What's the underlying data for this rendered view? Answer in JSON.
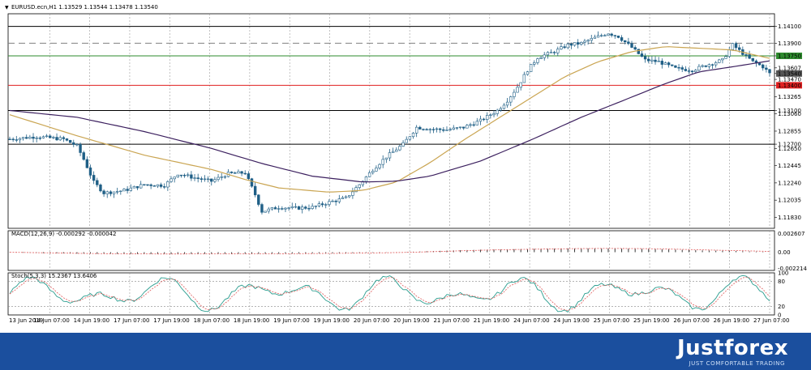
{
  "header": {
    "symbol_info": "EURUSD.ecn,H1  1.13529 1.13544 1.13478 1.13540",
    "macd_info": "MACD(12,26,9) -0.000292 -0.000042",
    "stoch_info": "Stoch(5,3,3) 15.2367 13.6406"
  },
  "brand": {
    "name": "Justforex",
    "tagline": "JUST COMFORTABLE TRADING"
  },
  "colors": {
    "candle": "#1f5f86",
    "ma_fast": "#caa552",
    "ma_slow": "#3b1f5e",
    "line_black": "#000000",
    "line_green": "#2e8b2e",
    "line_red": "#e02020",
    "line_dashed": "#808080",
    "macd_hist": "#333333",
    "macd_signal": "#e05a5a",
    "stoch_main": "#2a9d8f",
    "stoch_signal": "#e05a5a",
    "footer_bg": "#1b4f9e"
  },
  "chart_data": {
    "type": "candlestick",
    "symbol": "EURUSD.ecn",
    "timeframe": "H1",
    "price_axis": {
      "range": [
        1.117,
        1.1425
      ],
      "ticks": [
        "1.14100",
        "1.13900",
        "1.13750",
        "1.13607",
        "1.13540",
        "1.13470",
        "1.13400",
        "1.13265",
        "1.13100",
        "1.13060",
        "1.12855",
        "1.12700",
        "1.12650",
        "1.12445",
        "1.12240",
        "1.12035",
        "1.11830"
      ],
      "highlight_labels": [
        {
          "value": "1.13750",
          "color": "#2e8b2e"
        },
        {
          "value": "1.13540",
          "color": "#555555"
        },
        {
          "value": "1.13400",
          "color": "#e02020"
        }
      ]
    },
    "horizontal_levels": [
      {
        "value": 1.141,
        "style": "solid",
        "color": "#000000"
      },
      {
        "value": 1.139,
        "style": "dashed",
        "color": "#808080"
      },
      {
        "value": 1.1375,
        "style": "solid",
        "color": "#2e8b2e"
      },
      {
        "value": 1.134,
        "style": "solid",
        "color": "#e02020"
      },
      {
        "value": 1.131,
        "style": "solid",
        "color": "#000000"
      },
      {
        "value": 1.127,
        "style": "solid",
        "color": "#000000"
      }
    ],
    "time_axis": [
      "13 Jun 2019",
      "14 Jun 07:00",
      "14 Jun 19:00",
      "17 Jun 07:00",
      "17 Jun 19:00",
      "18 Jun 07:00",
      "18 Jun 19:00",
      "19 Jun 07:00",
      "19 Jun 19:00",
      "20 Jun 07:00",
      "20 Jun 19:00",
      "21 Jun 07:00",
      "21 Jun 19:00",
      "24 Jun 07:00",
      "24 Jun 19:00",
      "25 Jun 07:00",
      "25 Jun 19:00",
      "26 Jun 07:00",
      "26 Jun 19:00",
      "27 Jun 07:00"
    ],
    "close_path": [
      [
        0,
        1.1276
      ],
      [
        8,
        1.1279
      ],
      [
        16,
        1.1276
      ],
      [
        20,
        1.1268
      ],
      [
        22,
        1.1252
      ],
      [
        25,
        1.1225
      ],
      [
        28,
        1.1212
      ],
      [
        34,
        1.1215
      ],
      [
        40,
        1.1222
      ],
      [
        46,
        1.1221
      ],
      [
        50,
        1.1235
      ],
      [
        55,
        1.123
      ],
      [
        60,
        1.1226
      ],
      [
        65,
        1.1235
      ],
      [
        70,
        1.1236
      ],
      [
        73,
        1.121
      ],
      [
        75,
        1.119
      ],
      [
        80,
        1.1195
      ],
      [
        85,
        1.1194
      ],
      [
        90,
        1.1195
      ],
      [
        95,
        1.1201
      ],
      [
        100,
        1.1206
      ],
      [
        104,
        1.1222
      ],
      [
        108,
        1.124
      ],
      [
        112,
        1.1255
      ],
      [
        117,
        1.127
      ],
      [
        121,
        1.129
      ],
      [
        125,
        1.1288
      ],
      [
        130,
        1.1287
      ],
      [
        135,
        1.129
      ],
      [
        140,
        1.1298
      ],
      [
        145,
        1.131
      ],
      [
        148,
        1.1322
      ],
      [
        151,
        1.1338
      ],
      [
        154,
        1.1358
      ],
      [
        157,
        1.1373
      ],
      [
        162,
        1.138
      ],
      [
        166,
        1.1388
      ],
      [
        170,
        1.139
      ],
      [
        175,
        1.1398
      ],
      [
        178,
        1.1402
      ],
      [
        181,
        1.1398
      ],
      [
        185,
        1.1385
      ],
      [
        189,
        1.137
      ],
      [
        193,
        1.1368
      ],
      [
        198,
        1.136
      ],
      [
        203,
        1.1358
      ],
      [
        208,
        1.1365
      ],
      [
        212,
        1.137
      ],
      [
        215,
        1.1388
      ],
      [
        218,
        1.1378
      ],
      [
        221,
        1.1368
      ],
      [
        224,
        1.1362
      ],
      [
        226,
        1.1354
      ]
    ],
    "moving_average_fast": [
      [
        0,
        1.1305
      ],
      [
        20,
        1.128
      ],
      [
        40,
        1.1257
      ],
      [
        60,
        1.124
      ],
      [
        70,
        1.1228
      ],
      [
        80,
        1.1218
      ],
      [
        95,
        1.1213
      ],
      [
        105,
        1.1215
      ],
      [
        115,
        1.1225
      ],
      [
        125,
        1.1248
      ],
      [
        135,
        1.1275
      ],
      [
        145,
        1.13
      ],
      [
        155,
        1.1325
      ],
      [
        165,
        1.135
      ],
      [
        175,
        1.1368
      ],
      [
        185,
        1.138
      ],
      [
        195,
        1.1386
      ],
      [
        205,
        1.1384
      ],
      [
        215,
        1.1382
      ],
      [
        226,
        1.1372
      ]
    ],
    "moving_average_slow": [
      [
        0,
        1.131
      ],
      [
        20,
        1.1302
      ],
      [
        40,
        1.1285
      ],
      [
        60,
        1.1265
      ],
      [
        75,
        1.1247
      ],
      [
        90,
        1.1232
      ],
      [
        105,
        1.1225
      ],
      [
        115,
        1.1226
      ],
      [
        125,
        1.1232
      ],
      [
        140,
        1.125
      ],
      [
        155,
        1.1275
      ],
      [
        170,
        1.1302
      ],
      [
        185,
        1.1326
      ],
      [
        195,
        1.1342
      ],
      [
        205,
        1.1356
      ],
      [
        215,
        1.1362
      ],
      [
        226,
        1.1369
      ]
    ],
    "macd": {
      "range": [
        -0.002214,
        0.002607
      ],
      "ticks": [
        "0.002607",
        "0.00",
        "-0.002214"
      ]
    },
    "stochastic": {
      "range": [
        0,
        100
      ],
      "ticks": [
        "100",
        "80",
        "20",
        "0"
      ]
    }
  }
}
